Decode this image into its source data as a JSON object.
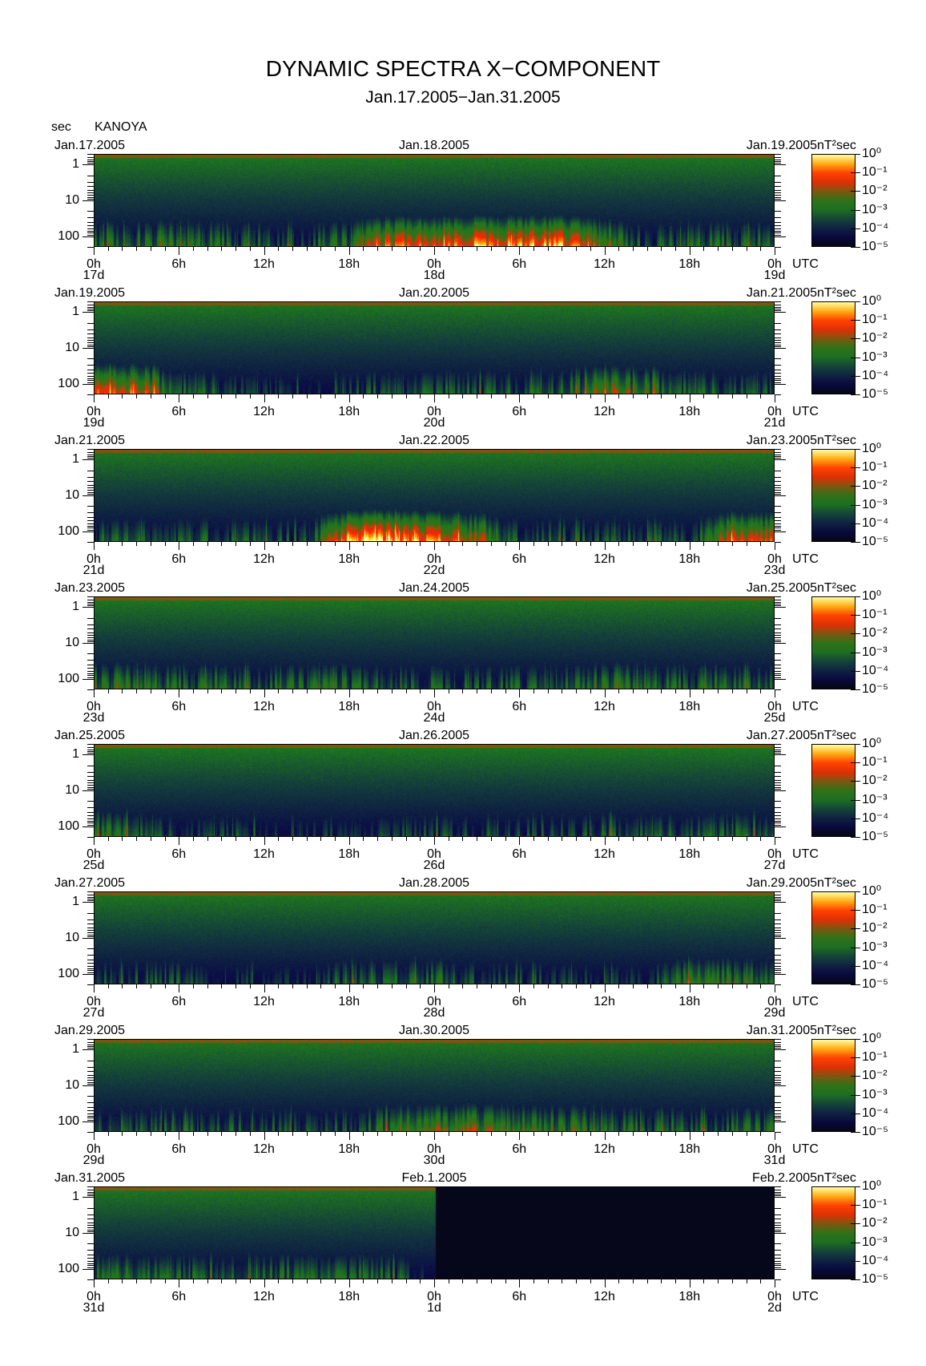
{
  "title": "DYNAMIC SPECTRA X−COMPONENT",
  "subtitle": "Jan.17.2005−Jan.31.2005",
  "unit_label": "sec",
  "station": "KANOYA",
  "colorbar_unit": "nT²sec",
  "colorbar_levels": [
    "10⁰",
    "10⁻¹",
    "10⁻²",
    "10⁻³",
    "10⁻⁴",
    "10⁻⁵"
  ],
  "y_ticks": [
    "1",
    "10",
    "100"
  ],
  "x_ticks": [
    "0h",
    "6h",
    "12h",
    "18h",
    "0h",
    "6h",
    "12h",
    "18h",
    "0h"
  ],
  "utc_label": "UTC",
  "colors": {
    "low": "#0a0a3c",
    "mid": "#1e7a1e",
    "high": "#ff2a00",
    "peak": "#ffff80"
  },
  "chart_data": [
    {
      "type": "heatmap",
      "dates": [
        "Jan.17.2005",
        "Jan.18.2005",
        "Jan.19.2005"
      ],
      "day_labels": [
        "17d",
        "18d",
        "19d"
      ],
      "y_unit": "sec",
      "yscale": "log",
      "ylim": [
        0.5,
        200
      ],
      "clim": [
        1e-05,
        1
      ],
      "activity": [
        0.4,
        0.4,
        0.4,
        0.35,
        0.3,
        0.3,
        0.4,
        0.75,
        0.8,
        0.85,
        0.85,
        0.85,
        0.6,
        0.2,
        0.35,
        0.35
      ]
    },
    {
      "type": "heatmap",
      "dates": [
        "Jan.19.2005",
        "Jan.20.2005",
        "Jan.21.2005"
      ],
      "day_labels": [
        "19d",
        "20d",
        "21d"
      ],
      "y_unit": "sec",
      "yscale": "log",
      "ylim": [
        0.5,
        200
      ],
      "clim": [
        1e-05,
        1
      ],
      "activity": [
        0.8,
        0.75,
        0.35,
        0.3,
        0.2,
        0.15,
        0.25,
        0.3,
        0.3,
        0.3,
        0.3,
        0.35,
        0.6,
        0.45,
        0.35,
        0.3
      ]
    },
    {
      "type": "heatmap",
      "dates": [
        "Jan.21.2005",
        "Jan.22.2005",
        "Jan.23.2005"
      ],
      "day_labels": [
        "21d",
        "22d",
        "23d"
      ],
      "y_unit": "sec",
      "yscale": "log",
      "ylim": [
        0.5,
        200
      ],
      "clim": [
        1e-05,
        1
      ],
      "activity": [
        0.3,
        0.3,
        0.3,
        0.3,
        0.3,
        0.25,
        0.95,
        0.95,
        0.85,
        0.6,
        0.3,
        0.3,
        0.25,
        0.3,
        0.3,
        0.7
      ]
    },
    {
      "type": "heatmap",
      "dates": [
        "Jan.23.2005",
        "Jan.24.2005",
        "Jan.25.2005"
      ],
      "day_labels": [
        "23d",
        "24d",
        "25d"
      ],
      "y_unit": "sec",
      "yscale": "log",
      "ylim": [
        0.5,
        200
      ],
      "clim": [
        1e-05,
        1
      ],
      "activity": [
        0.45,
        0.4,
        0.35,
        0.4,
        0.35,
        0.35,
        0.35,
        0.35,
        0.3,
        0.3,
        0.3,
        0.35,
        0.45,
        0.35,
        0.35,
        0.4
      ]
    },
    {
      "type": "heatmap",
      "dates": [
        "Jan.25.2005",
        "Jan.26.2005",
        "Jan.27.2005"
      ],
      "day_labels": [
        "25d",
        "26d",
        "27d"
      ],
      "y_unit": "sec",
      "yscale": "log",
      "ylim": [
        0.5,
        200
      ],
      "clim": [
        1e-05,
        1
      ],
      "activity": [
        0.45,
        0.35,
        0.2,
        0.25,
        0.2,
        0.15,
        0.2,
        0.2,
        0.25,
        0.2,
        0.25,
        0.2,
        0.3,
        0.3,
        0.3,
        0.35
      ]
    },
    {
      "type": "heatmap",
      "dates": [
        "Jan.27.2005",
        "Jan.28.2005",
        "Jan.29.2005"
      ],
      "day_labels": [
        "27d",
        "28d",
        "29d"
      ],
      "y_unit": "sec",
      "yscale": "log",
      "ylim": [
        0.5,
        200
      ],
      "clim": [
        1e-05,
        1
      ],
      "activity": [
        0.3,
        0.3,
        0.25,
        0.15,
        0.15,
        0.15,
        0.35,
        0.35,
        0.35,
        0.3,
        0.25,
        0.2,
        0.2,
        0.25,
        0.45,
        0.45
      ]
    },
    {
      "type": "heatmap",
      "dates": [
        "Jan.29.2005",
        "Jan.30.2005",
        "Jan.31.2005"
      ],
      "day_labels": [
        "29d",
        "30d",
        "31d"
      ],
      "y_unit": "sec",
      "yscale": "log",
      "ylim": [
        0.5,
        200
      ],
      "clim": [
        1e-05,
        1
      ],
      "activity": [
        0.3,
        0.3,
        0.3,
        0.3,
        0.3,
        0.3,
        0.3,
        0.5,
        0.55,
        0.55,
        0.5,
        0.45,
        0.35,
        0.35,
        0.35,
        0.35
      ]
    },
    {
      "type": "heatmap",
      "dates": [
        "Jan.31.2005",
        "Feb.1.2005",
        "Feb.2.2005"
      ],
      "day_labels": [
        "31d",
        "1d",
        "2d"
      ],
      "y_unit": "sec",
      "yscale": "log",
      "ylim": [
        0.5,
        200
      ],
      "clim": [
        1e-05,
        1
      ],
      "activity": [
        0.4,
        0.4,
        0.35,
        0.35,
        0.35,
        0.4,
        0.35,
        0.35,
        0,
        0,
        0,
        0,
        0,
        0,
        0,
        0
      ],
      "data_until_hour": 24
    }
  ]
}
